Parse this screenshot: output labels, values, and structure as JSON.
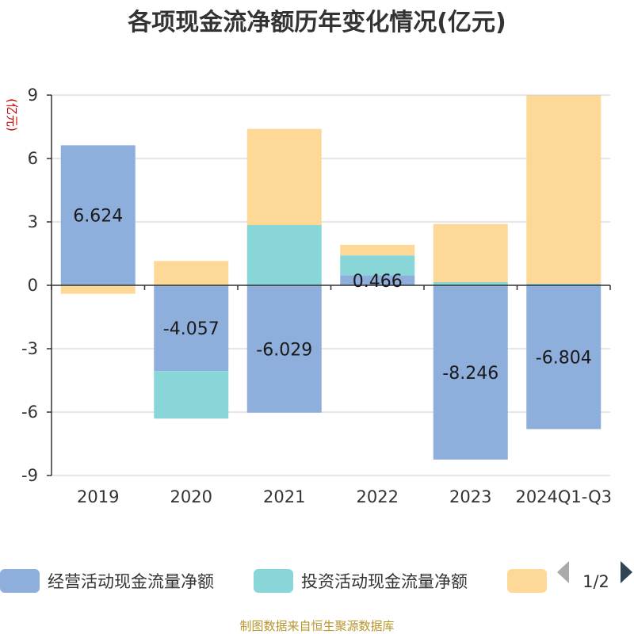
{
  "chart_data": {
    "type": "bar",
    "stacked": true,
    "title": "各项现金流净额历年变化情况(亿元)",
    "ylabel": "(亿元)",
    "xlabel": "",
    "categories": [
      "2019",
      "2020",
      "2021",
      "2022",
      "2023",
      "2024Q1-Q3"
    ],
    "ylim": [
      -9,
      9
    ],
    "yticks": [
      -9,
      -6,
      -3,
      0,
      3,
      6,
      9
    ],
    "grid": true,
    "series": [
      {
        "name": "经营活动现金流量净额",
        "color": "#8eaedb",
        "values": [
          6.624,
          -4.057,
          -6.029,
          0.466,
          -8.246,
          -6.804
        ],
        "labels": [
          "6.624",
          "-4.057",
          "-6.029",
          "0.466",
          "-8.246",
          "-6.804"
        ]
      },
      {
        "name": "投资活动现金流量净额",
        "color": "#88d6d8",
        "values": [
          0.0,
          -2.25,
          2.85,
          0.95,
          0.15,
          0.08
        ]
      },
      {
        "name": "",
        "color": "#fed897",
        "values": [
          -0.4,
          1.15,
          4.55,
          0.5,
          2.75,
          8.9
        ]
      }
    ],
    "legend": {
      "position": "bottom",
      "page": "1/2"
    },
    "source": "制图数据来自恒生聚源数据库"
  }
}
